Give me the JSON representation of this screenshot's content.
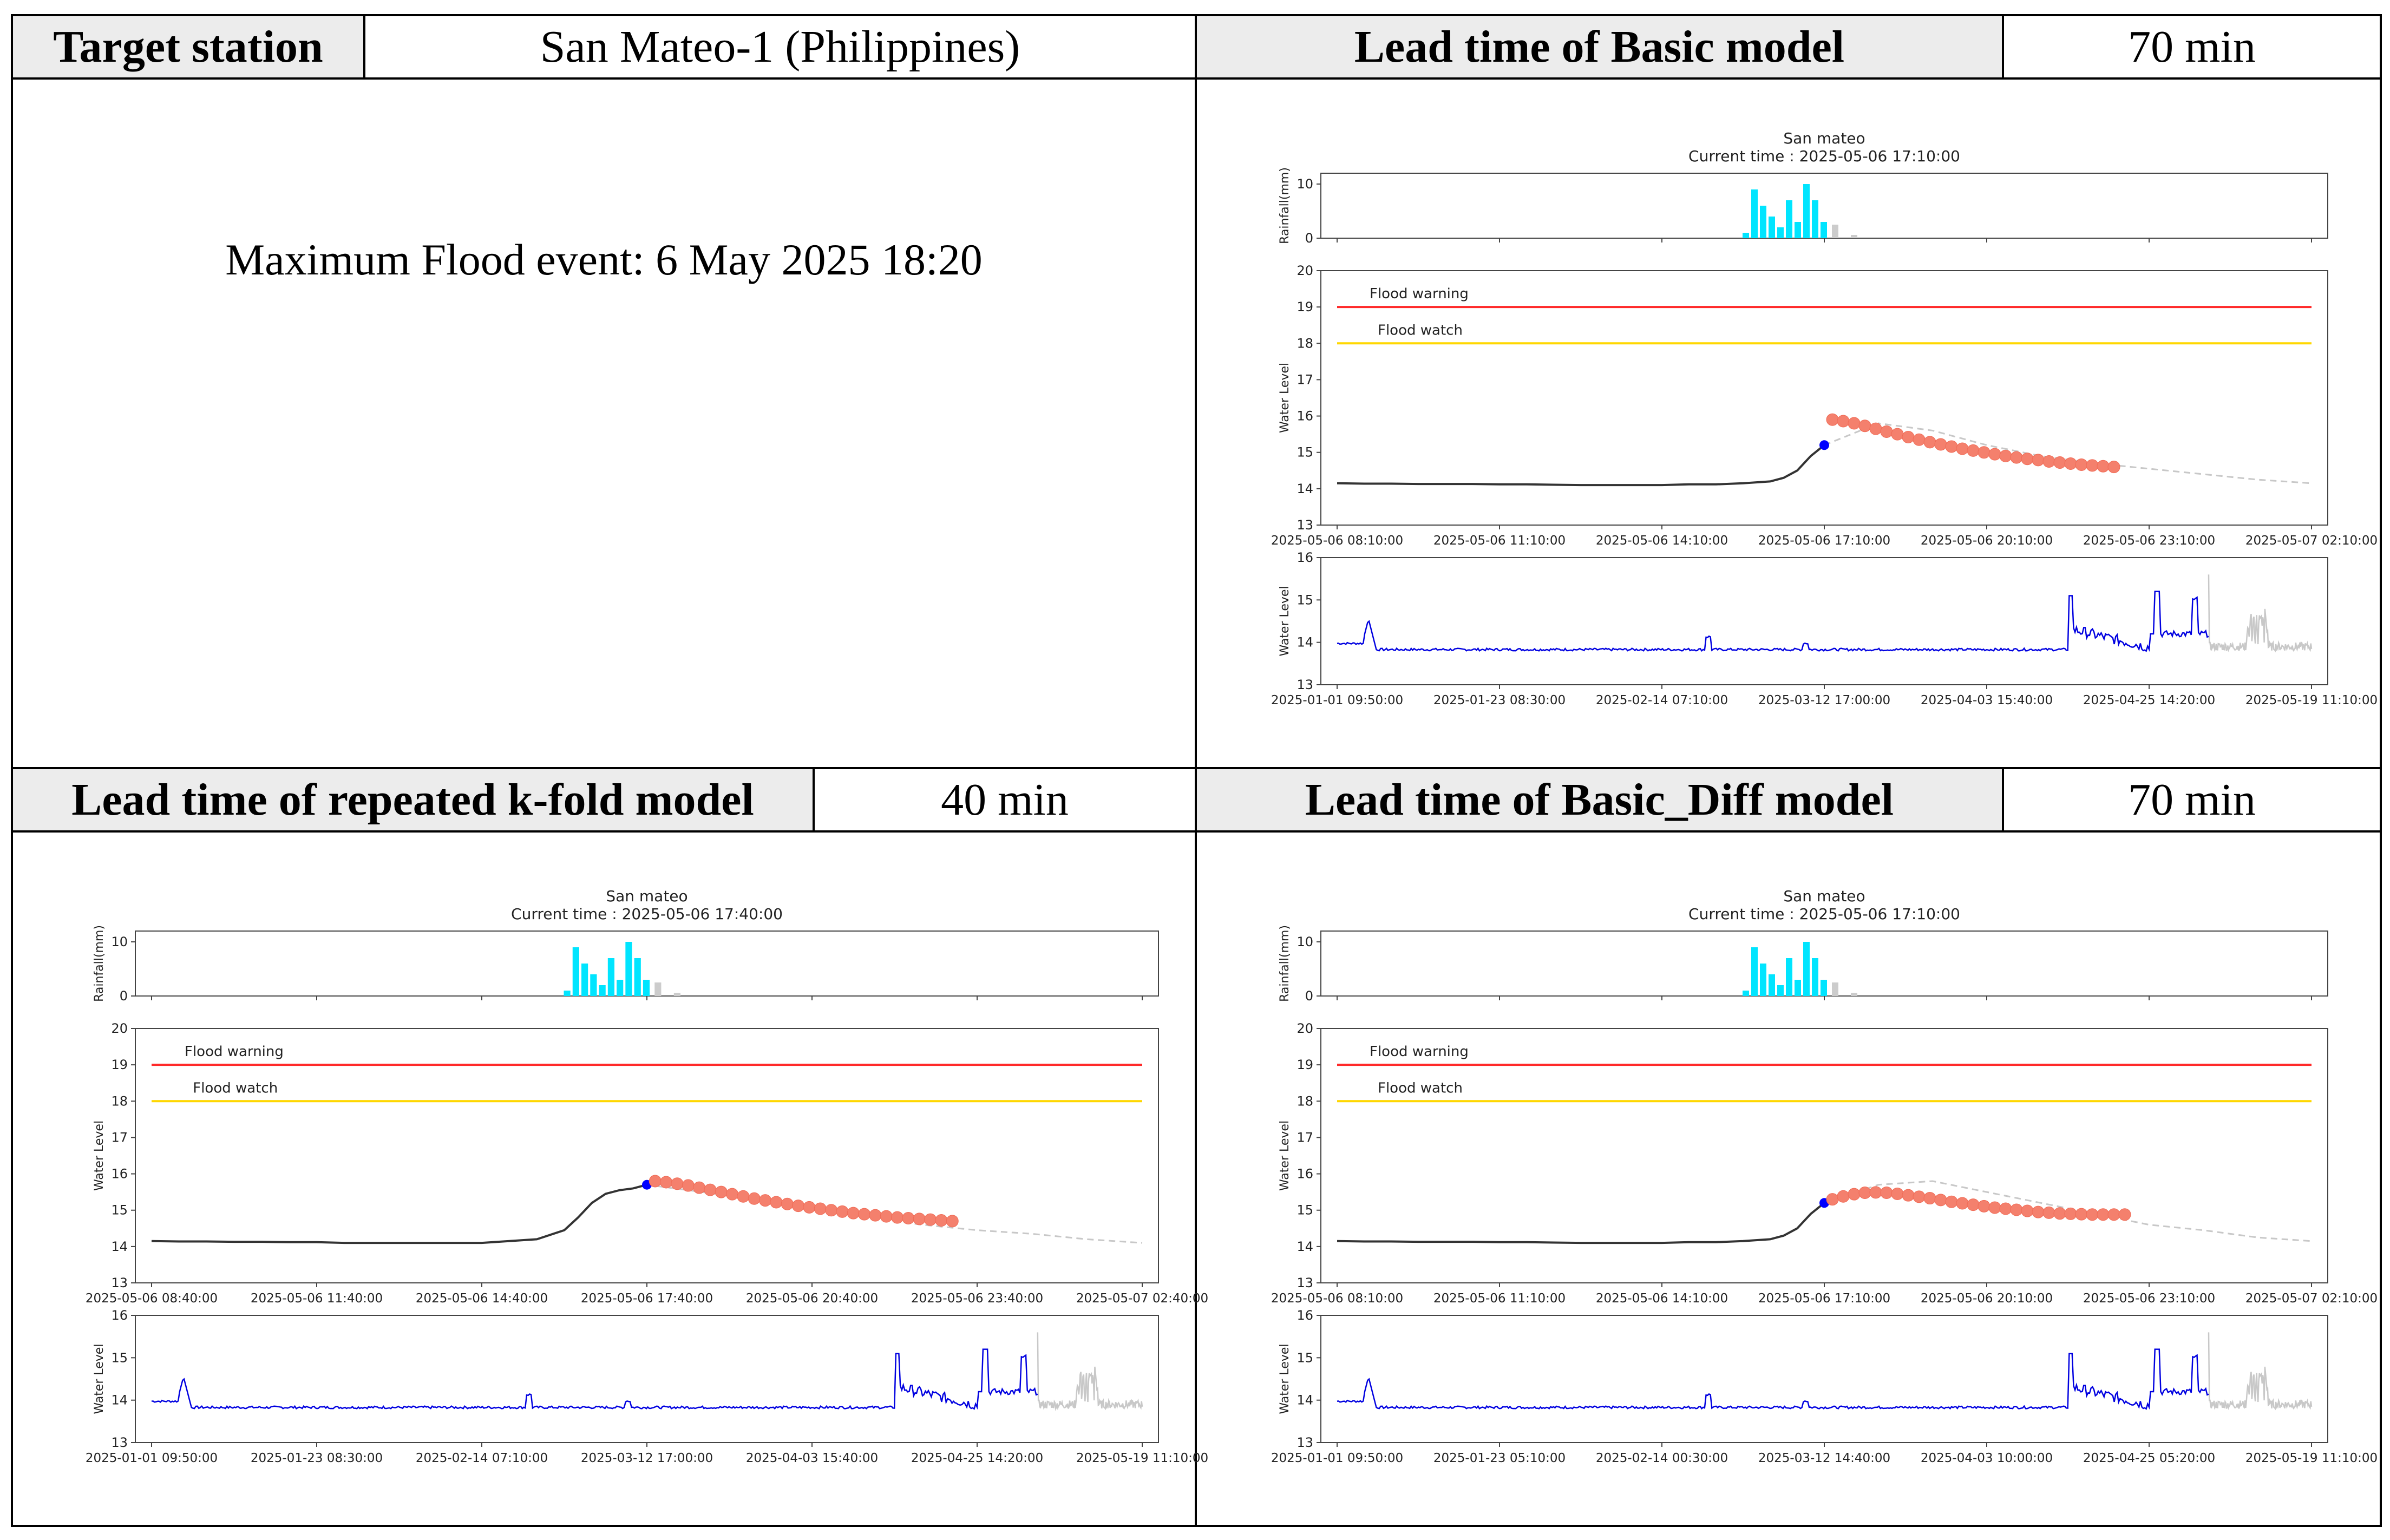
{
  "table": {
    "r1": {
      "label": "Target station",
      "value": "San Mateo-1 (Philippines)",
      "label2": "Lead time of Basic model",
      "value2": "70 min"
    },
    "event": "Maximum Flood event: 6 May 2025 18:20",
    "r3": {
      "label": "Lead time of repeated k-fold model",
      "value": "40 min",
      "label2": "Lead time of Basic_Diff model",
      "value2": "70 min"
    }
  },
  "chart_data": [
    {
      "panel": "basic",
      "type": "line",
      "title": "San mateo",
      "subtitle": "Current time : 2025-05-06 17:10:00",
      "rain": {
        "ylabel": "Rainfall(mm)",
        "yticks": [
          0,
          10
        ],
        "ylim": [
          0,
          12
        ],
        "bars": [
          1,
          9,
          6,
          4,
          2,
          7,
          3,
          10,
          7,
          3
        ]
      },
      "wl": {
        "ylabel": "Water Level",
        "ylim": [
          13,
          20
        ],
        "yticks": [
          13,
          14,
          15,
          16,
          17,
          18,
          19,
          20
        ],
        "xticks": [
          "2025-05-06 08:10:00",
          "2025-05-06 11:10:00",
          "2025-05-06 14:10:00",
          "2025-05-06 17:10:00",
          "2025-05-06 20:10:00",
          "2025-05-06 23:10:00",
          "2025-05-07 02:10:00"
        ],
        "warning": {
          "label": "Flood warning",
          "value": 19,
          "color": "#ff2a2a"
        },
        "watch": {
          "label": "Flood watch",
          "value": 18,
          "color": "#ffd700"
        },
        "obs_x": [
          0,
          0.5,
          1,
          1.5,
          2,
          2.5,
          3,
          3.5,
          4,
          4.5,
          5,
          5.5,
          6,
          6.5,
          7,
          7.5,
          8,
          8.25,
          8.5,
          8.75,
          9
        ],
        "obs_y": [
          14.15,
          14.14,
          14.14,
          14.13,
          14.13,
          14.13,
          14.12,
          14.12,
          14.11,
          14.1,
          14.1,
          14.1,
          14.1,
          14.12,
          14.12,
          14.15,
          14.2,
          14.3,
          14.5,
          14.9,
          15.2
        ],
        "pred": [
          15.9,
          15.86,
          15.8,
          15.73,
          15.65,
          15.57,
          15.5,
          15.42,
          15.35,
          15.28,
          15.22,
          15.16,
          15.1,
          15.05,
          15.0,
          14.95,
          14.9,
          14.86,
          14.82,
          14.79,
          14.75,
          14.72,
          14.69,
          14.66,
          14.64,
          14.62,
          14.6
        ],
        "pred_start": 9.15,
        "pred_step": 0.2,
        "dash_x": [
          9,
          10,
          11,
          12,
          13,
          14,
          15,
          16,
          17,
          18
        ],
        "dash_y": [
          15.2,
          15.8,
          15.6,
          15.2,
          14.9,
          14.7,
          14.55,
          14.4,
          14.25,
          14.15
        ]
      },
      "hist": {
        "ylabel": "Water Level",
        "ylim": [
          13,
          16
        ],
        "yticks": [
          13,
          14,
          15,
          16
        ],
        "xticks": [
          "2025-01-01 09:50:00",
          "2025-01-23 08:30:00",
          "2025-02-14 07:10:00",
          "2025-03-12 17:00:00",
          "2025-04-03 15:40:00",
          "2025-04-25 14:20:00",
          "2025-05-19 11:10:00"
        ]
      }
    },
    {
      "panel": "kfold",
      "type": "line",
      "title": "San mateo",
      "subtitle": "Current time : 2025-05-06 17:40:00",
      "rain": {
        "ylabel": "Rainfall(mm)",
        "yticks": [
          0,
          10
        ],
        "ylim": [
          0,
          12
        ],
        "bars": [
          1,
          9,
          6,
          4,
          2,
          7,
          3,
          10,
          7,
          3
        ]
      },
      "wl": {
        "ylabel": "Water Level",
        "ylim": [
          13,
          20
        ],
        "yticks": [
          13,
          14,
          15,
          16,
          17,
          18,
          19,
          20
        ],
        "xticks": [
          "2025-05-06 08:40:00",
          "2025-05-06 11:40:00",
          "2025-05-06 14:40:00",
          "2025-05-06 17:40:00",
          "2025-05-06 20:40:00",
          "2025-05-06 23:40:00",
          "2025-05-07 02:40:00"
        ],
        "warning": {
          "label": "Flood warning",
          "value": 19,
          "color": "#ff2a2a"
        },
        "watch": {
          "label": "Flood watch",
          "value": 18,
          "color": "#ffd700"
        },
        "obs_x": [
          0,
          0.5,
          1,
          1.5,
          2,
          2.5,
          3,
          3.5,
          4,
          4.5,
          5,
          5.5,
          6,
          6.5,
          7,
          7.5,
          7.75,
          8,
          8.25,
          8.5,
          8.75,
          9
        ],
        "obs_y": [
          14.15,
          14.14,
          14.14,
          14.13,
          14.13,
          14.12,
          14.12,
          14.1,
          14.1,
          14.1,
          14.1,
          14.1,
          14.1,
          14.15,
          14.2,
          14.45,
          14.8,
          15.2,
          15.45,
          15.55,
          15.6,
          15.7
        ],
        "pred": [
          15.8,
          15.77,
          15.73,
          15.68,
          15.62,
          15.56,
          15.5,
          15.44,
          15.38,
          15.32,
          15.27,
          15.22,
          15.17,
          15.12,
          15.08,
          15.04,
          15.0,
          14.96,
          14.92,
          14.89,
          14.86,
          14.83,
          14.8,
          14.78,
          14.76,
          14.74,
          14.72,
          14.7
        ],
        "pred_start": 9.15,
        "pred_step": 0.2,
        "dash_x": [
          9,
          10,
          11,
          12,
          13,
          14,
          15,
          16,
          17,
          18
        ],
        "dash_y": [
          15.7,
          15.5,
          15.3,
          15.0,
          14.8,
          14.6,
          14.45,
          14.35,
          14.2,
          14.1
        ]
      },
      "hist": {
        "ylabel": "Water Level",
        "ylim": [
          13,
          16
        ],
        "yticks": [
          13,
          14,
          15,
          16
        ],
        "xticks": [
          "2025-01-01 09:50:00",
          "2025-01-23 08:30:00",
          "2025-02-14 07:10:00",
          "2025-03-12 17:00:00",
          "2025-04-03 15:40:00",
          "2025-04-25 14:20:00",
          "2025-05-19 11:10:00"
        ]
      }
    },
    {
      "panel": "diff",
      "type": "line",
      "title": "San mateo",
      "subtitle": "Current time : 2025-05-06 17:10:00",
      "rain": {
        "ylabel": "Rainfall(mm)",
        "yticks": [
          0,
          10
        ],
        "ylim": [
          0,
          12
        ],
        "bars": [
          1,
          9,
          6,
          4,
          2,
          7,
          3,
          10,
          7,
          3
        ]
      },
      "wl": {
        "ylabel": "Water Level",
        "ylim": [
          13,
          20
        ],
        "yticks": [
          13,
          14,
          15,
          16,
          17,
          18,
          19,
          20
        ],
        "xticks": [
          "2025-05-06 08:10:00",
          "2025-05-06 11:10:00",
          "2025-05-06 14:10:00",
          "2025-05-06 17:10:00",
          "2025-05-06 20:10:00",
          "2025-05-06 23:10:00",
          "2025-05-07 02:10:00"
        ],
        "warning": {
          "label": "Flood warning",
          "value": 19,
          "color": "#ff2a2a"
        },
        "watch": {
          "label": "Flood watch",
          "value": 18,
          "color": "#ffd700"
        },
        "obs_x": [
          0,
          0.5,
          1,
          1.5,
          2,
          2.5,
          3,
          3.5,
          4,
          4.5,
          5,
          5.5,
          6,
          6.5,
          7,
          7.5,
          8,
          8.25,
          8.5,
          8.75,
          9
        ],
        "obs_y": [
          14.15,
          14.14,
          14.14,
          14.13,
          14.13,
          14.13,
          14.12,
          14.12,
          14.11,
          14.1,
          14.1,
          14.1,
          14.1,
          14.12,
          14.12,
          14.15,
          14.2,
          14.3,
          14.5,
          14.9,
          15.2
        ],
        "pred": [
          15.3,
          15.38,
          15.44,
          15.48,
          15.49,
          15.48,
          15.45,
          15.41,
          15.37,
          15.33,
          15.28,
          15.23,
          15.19,
          15.15,
          15.11,
          15.07,
          15.04,
          15.01,
          14.98,
          14.95,
          14.93,
          14.91,
          14.9,
          14.89,
          14.88,
          14.88,
          14.88,
          14.88
        ],
        "pred_start": 9.15,
        "pred_step": 0.2,
        "dash_x": [
          9,
          10,
          11,
          12,
          13,
          14,
          15,
          16,
          17,
          18
        ],
        "dash_y": [
          15.2,
          15.7,
          15.8,
          15.5,
          15.2,
          14.9,
          14.6,
          14.45,
          14.25,
          14.15
        ]
      },
      "hist": {
        "ylabel": "Water Level",
        "ylim": [
          13,
          16
        ],
        "yticks": [
          13,
          14,
          15,
          16
        ],
        "xticks": [
          "2025-01-01 09:50:00",
          "2025-01-23 05:10:00",
          "2025-02-14 00:30:00",
          "2025-03-12 14:40:00",
          "2025-04-03 10:00:00",
          "2025-04-25 05:20:00",
          "2025-05-19 11:10:00"
        ]
      }
    }
  ]
}
